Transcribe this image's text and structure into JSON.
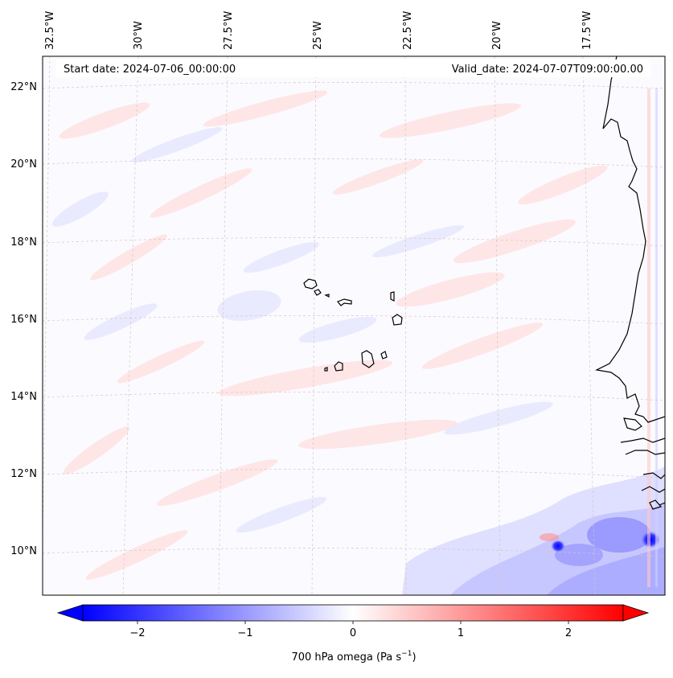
{
  "map": {
    "start_date": "Start date: 2024-07-06_00:00:00",
    "valid_date": "Valid_date: 2024-07-07T09:00:00.00",
    "lon_labels": [
      "32.5°W",
      "30°W",
      "27.5°W",
      "25°W",
      "22.5°W",
      "20°W",
      "17.5°W"
    ],
    "lat_labels": [
      "22°N",
      "20°N",
      "18°N",
      "16°N",
      "14°N",
      "12°N",
      "10°N"
    ]
  },
  "colorbar": {
    "label": "700 hPa omega (Pa s",
    "label_superscript": "−1",
    "label_suffix": ")",
    "ticks": [
      "−2",
      "−1",
      "0",
      "1",
      "2"
    ],
    "range": [
      -2.7,
      2.7
    ],
    "colors": {
      "negative": "#0000ff",
      "zero": "#ffffff",
      "positive": "#ff0000"
    }
  }
}
